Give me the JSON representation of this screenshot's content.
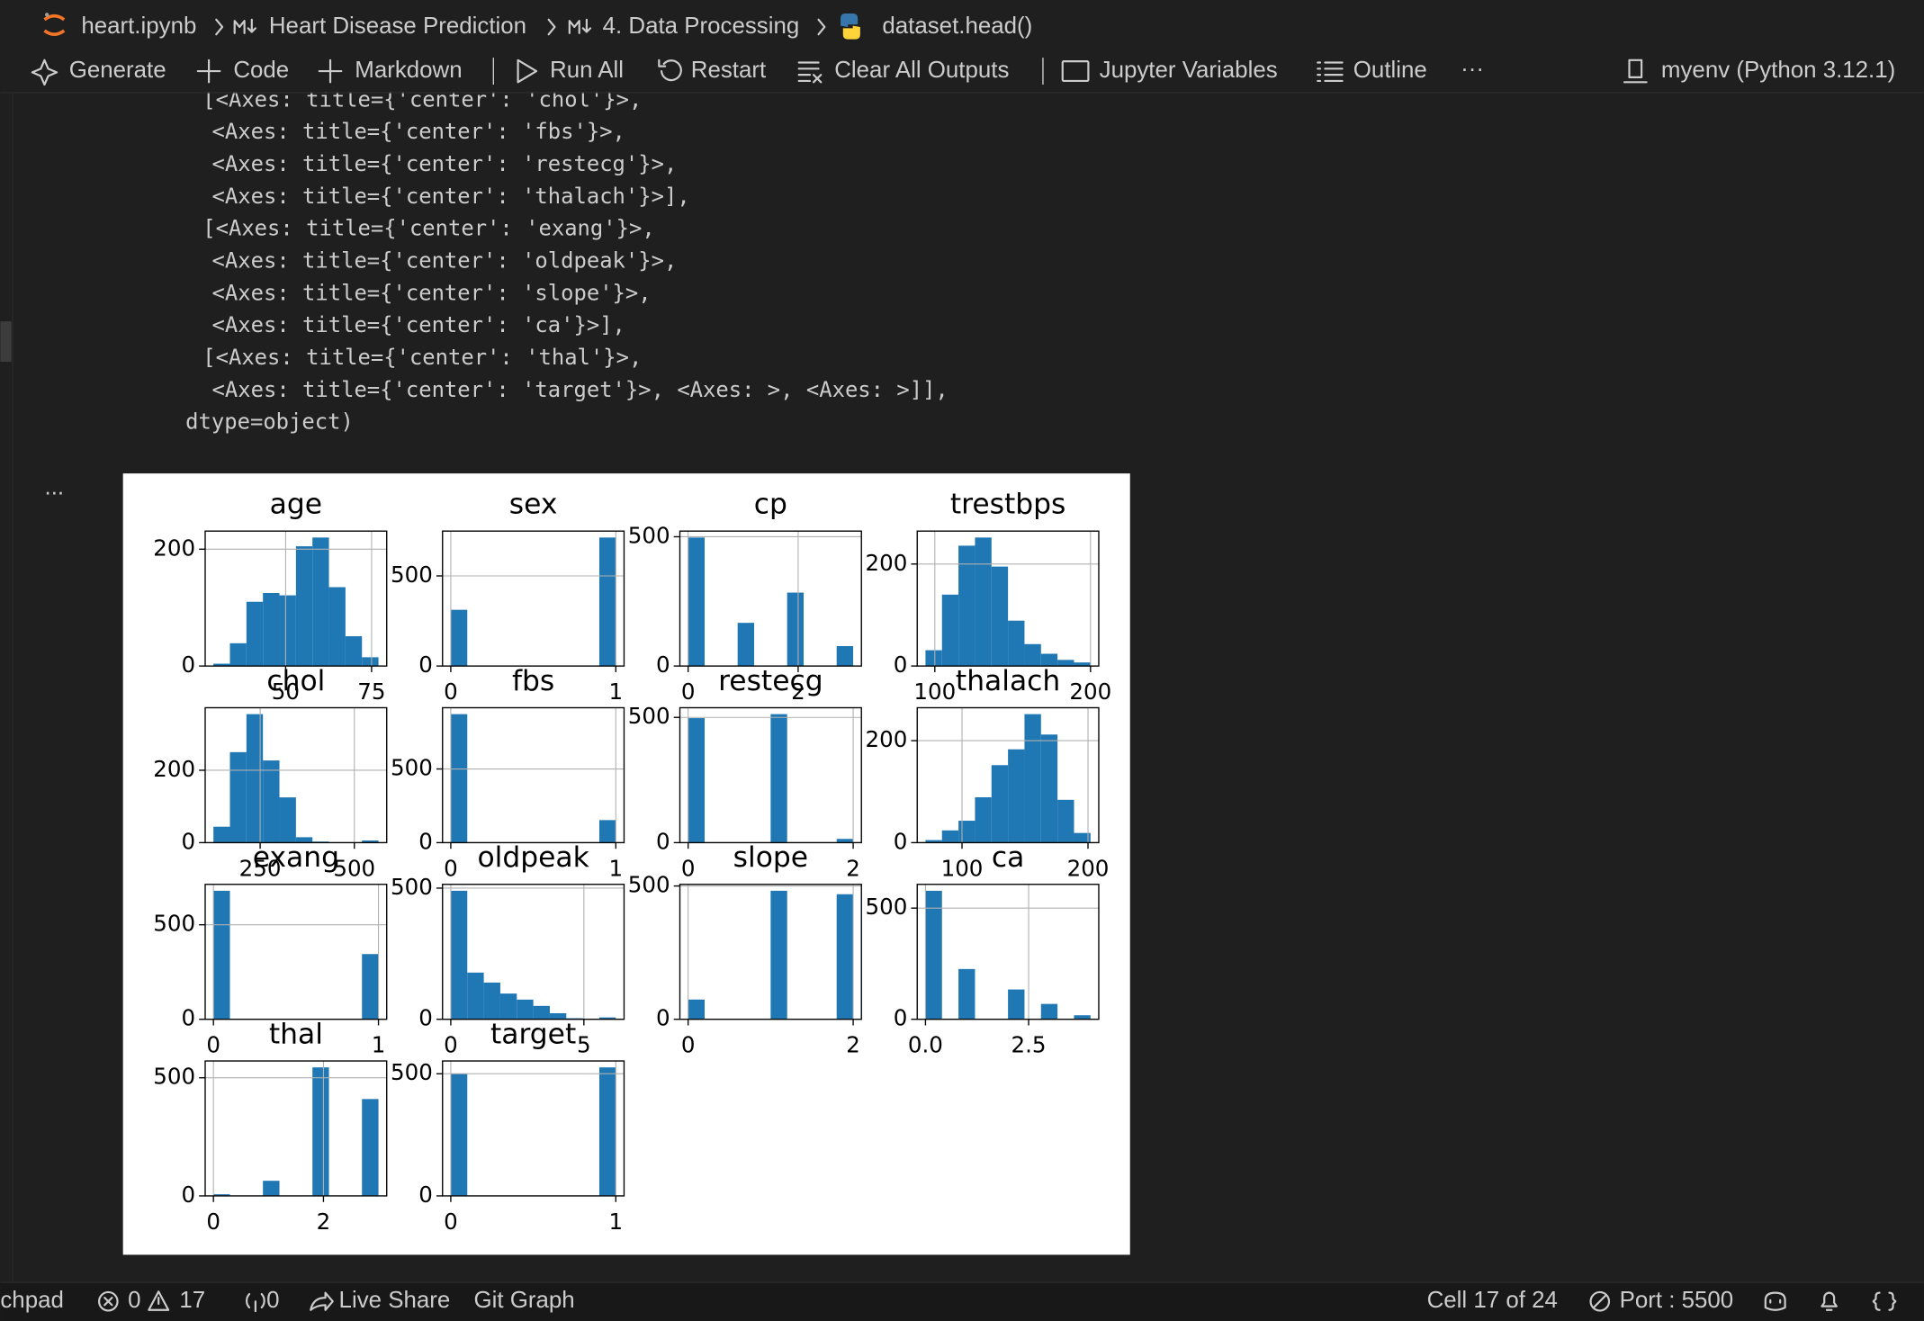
{
  "breadcrumb": [
    "heart.ipynb",
    "Heart Disease Prediction",
    "4. Data Processing",
    "dataset.head()"
  ],
  "toolbar": {
    "items": [
      "Generate",
      "Code",
      "Markdown",
      "Run All",
      "Restart",
      "Clear All Outputs",
      "Jupyter Variables",
      "Outline"
    ],
    "more": "···",
    "kernel": "myenv (Python 3.12.1)"
  },
  "output": {
    "lines": [
      "[<Axes: title={'center': 'chol'}>,",
      " <Axes: title={'center': 'fbs'}>,",
      " <Axes: title={'center': 'restecg'}>,",
      " <Axes: title={'center': 'thalach'}>],",
      "[<Axes: title={'center': 'exang'}>,",
      " <Axes: title={'center': 'oldpeak'}>,",
      " <Axes: title={'center': 'slope'}>,",
      " <Axes: title={'center': 'ca'}>],",
      "[<Axes: title={'center': 'thal'}>,",
      " <Axes: title={'center': 'target'}>, <Axes: >, <Axes: >]],",
      "dtype=object)"
    ],
    "more": "..."
  },
  "chart_data": [
    {
      "type": "histogram",
      "title": "age",
      "color": "#1f77b4",
      "grid": true,
      "bins": [
        29,
        33.8,
        38.6,
        43.4,
        48.2,
        53,
        57.8,
        62.6,
        67.4,
        72.2,
        77
      ],
      "values": [
        4,
        39,
        110,
        125,
        121,
        205,
        220,
        135,
        51,
        15
      ],
      "xlim": [
        26.6,
        79.4
      ],
      "xticks": [
        50,
        75
      ],
      "ylim": [
        0,
        231
      ],
      "yticks": [
        0,
        200
      ]
    },
    {
      "type": "histogram",
      "title": "sex",
      "color": "#1f77b4",
      "grid": true,
      "bins": [
        0,
        0.1,
        0.2,
        0.3,
        0.4,
        0.5,
        0.6,
        0.7,
        0.8,
        0.9,
        1
      ],
      "values": [
        312,
        0,
        0,
        0,
        0,
        0,
        0,
        0,
        0,
        713
      ],
      "xlim": [
        -0.05,
        1.05
      ],
      "xticks": [
        0,
        1
      ],
      "ylim": [
        0,
        748.65
      ],
      "yticks": [
        0,
        500
      ]
    },
    {
      "type": "histogram",
      "title": "cp",
      "color": "#1f77b4",
      "grid": true,
      "bins": [
        0,
        0.3,
        0.6,
        0.9,
        1.2,
        1.5,
        1.8,
        2.1,
        2.4,
        2.7,
        3
      ],
      "values": [
        497,
        0,
        0,
        167,
        0,
        0,
        284,
        0,
        0,
        77
      ],
      "xlim": [
        -0.15,
        3.15
      ],
      "xticks": [
        0,
        2
      ],
      "ylim": [
        0,
        521.85
      ],
      "yticks": [
        0,
        500
      ]
    },
    {
      "type": "histogram",
      "title": "trestbps",
      "color": "#1f77b4",
      "grid": true,
      "bins": [
        94,
        104.6,
        115.2,
        125.8,
        136.4,
        147,
        157.6,
        168.2,
        178.8,
        189.4,
        200
      ],
      "values": [
        31,
        140,
        236,
        252,
        195,
        89,
        43,
        24,
        12,
        7
      ],
      "xlim": [
        88.7,
        205.3
      ],
      "xticks": [
        100,
        200
      ],
      "ylim": [
        0,
        264.6
      ],
      "yticks": [
        0,
        200
      ]
    },
    {
      "type": "histogram",
      "title": "chol",
      "color": "#1f77b4",
      "grid": true,
      "bins": [
        126,
        169.8,
        213.6,
        257.4,
        301.2,
        345,
        388.8,
        432.6,
        476.4,
        520.2,
        564
      ],
      "values": [
        44,
        250,
        355,
        227,
        125,
        15,
        3,
        0,
        0,
        6
      ],
      "xlim": [
        104.1,
        585.9
      ],
      "xticks": [
        250,
        500
      ],
      "ylim": [
        0,
        372.75
      ],
      "yticks": [
        0,
        200
      ]
    },
    {
      "type": "histogram",
      "title": "fbs",
      "color": "#1f77b4",
      "grid": true,
      "bins": [
        0,
        0.1,
        0.2,
        0.3,
        0.4,
        0.5,
        0.6,
        0.7,
        0.8,
        0.9,
        1
      ],
      "values": [
        872,
        0,
        0,
        0,
        0,
        0,
        0,
        0,
        0,
        153
      ],
      "xlim": [
        -0.05,
        1.05
      ],
      "xticks": [
        0,
        1
      ],
      "ylim": [
        0,
        915.6
      ],
      "yticks": [
        0,
        500
      ]
    },
    {
      "type": "histogram",
      "title": "restecg",
      "color": "#1f77b4",
      "grid": true,
      "bins": [
        0,
        0.2,
        0.4,
        0.6,
        0.8,
        1,
        1.2,
        1.4,
        1.6,
        1.8,
        2
      ],
      "values": [
        497,
        0,
        0,
        0,
        0,
        513,
        0,
        0,
        0,
        15
      ],
      "xlim": [
        -0.1,
        2.1
      ],
      "xticks": [
        0,
        2
      ],
      "ylim": [
        0,
        538.65
      ],
      "yticks": [
        0,
        500
      ]
    },
    {
      "type": "histogram",
      "title": "thalach",
      "color": "#1f77b4",
      "grid": true,
      "bins": [
        71,
        84.1,
        97.2,
        110.3,
        123.4,
        136.5,
        149.6,
        162.7,
        175.8,
        188.9,
        202
      ],
      "values": [
        5,
        24,
        43,
        89,
        152,
        183,
        252,
        212,
        84,
        19
      ],
      "xlim": [
        64.45,
        208.55
      ],
      "xticks": [
        100,
        200
      ],
      "ylim": [
        0,
        264.6
      ],
      "yticks": [
        0,
        200
      ]
    },
    {
      "type": "histogram",
      "title": "exang",
      "color": "#1f77b4",
      "grid": true,
      "bins": [
        0,
        0.1,
        0.2,
        0.3,
        0.4,
        0.5,
        0.6,
        0.7,
        0.8,
        0.9,
        1
      ],
      "values": [
        680,
        0,
        0,
        0,
        0,
        0,
        0,
        0,
        0,
        345
      ],
      "xlim": [
        -0.05,
        1.05
      ],
      "xticks": [
        0,
        1
      ],
      "ylim": [
        0,
        714
      ],
      "yticks": [
        0,
        500
      ]
    },
    {
      "type": "histogram",
      "title": "oldpeak",
      "color": "#1f77b4",
      "grid": true,
      "bins": [
        0,
        0.62,
        1.24,
        1.86,
        2.48,
        3.1,
        3.72,
        4.34,
        4.96,
        5.58,
        6.2
      ],
      "values": [
        490,
        178,
        140,
        98,
        75,
        51,
        23,
        4,
        0,
        7
      ],
      "xlim": [
        -0.31,
        6.51
      ],
      "xticks": [
        0,
        5
      ],
      "ylim": [
        0,
        514.5
      ],
      "yticks": [
        0,
        500
      ]
    },
    {
      "type": "histogram",
      "title": "slope",
      "color": "#1f77b4",
      "grid": true,
      "bins": [
        0,
        0.2,
        0.4,
        0.6,
        0.8,
        1,
        1.2,
        1.4,
        1.6,
        1.8,
        2
      ],
      "values": [
        74,
        0,
        0,
        0,
        0,
        482,
        0,
        0,
        0,
        469
      ],
      "xlim": [
        -0.1,
        2.1
      ],
      "xticks": [
        0,
        2
      ],
      "ylim": [
        0,
        506.1
      ],
      "yticks": [
        0,
        500
      ]
    },
    {
      "type": "histogram",
      "title": "ca",
      "color": "#1f77b4",
      "grid": true,
      "bins": [
        0,
        0.4,
        0.8,
        1.2,
        1.6,
        2,
        2.4,
        2.8,
        3.2,
        3.6,
        4
      ],
      "values": [
        578,
        0,
        226,
        0,
        0,
        134,
        0,
        69,
        0,
        18
      ],
      "xlim": [
        -0.2,
        4.2
      ],
      "xticks": [
        {
          "value": 0,
          "label": "0.0"
        },
        2.5
      ],
      "ylim": [
        0,
        606.9
      ],
      "yticks": [
        0,
        500
      ]
    },
    {
      "type": "histogram",
      "title": "thal",
      "color": "#1f77b4",
      "grid": true,
      "bins": [
        0,
        0.3,
        0.6,
        0.9,
        1.2,
        1.5,
        1.8,
        2.1,
        2.4,
        2.7,
        3
      ],
      "values": [
        7,
        0,
        0,
        64,
        0,
        0,
        544,
        0,
        0,
        410
      ],
      "xlim": [
        -0.15,
        3.15
      ],
      "xticks": [
        0,
        2
      ],
      "ylim": [
        0,
        571.2
      ],
      "yticks": [
        0,
        500
      ]
    },
    {
      "type": "histogram",
      "title": "target",
      "color": "#1f77b4",
      "grid": true,
      "bins": [
        0,
        0.1,
        0.2,
        0.3,
        0.4,
        0.5,
        0.6,
        0.7,
        0.8,
        0.9,
        1
      ],
      "values": [
        499,
        0,
        0,
        0,
        0,
        0,
        0,
        0,
        0,
        526
      ],
      "xlim": [
        -0.05,
        1.05
      ],
      "xticks": [
        0,
        1
      ],
      "ylim": [
        0,
        552.3
      ],
      "yticks": [
        0,
        500
      ]
    }
  ],
  "status_bar": {
    "launchpad": "chpad",
    "errors": 0,
    "warnings": 17,
    "ports": 0,
    "live_share": "Live Share",
    "git_graph": "Git Graph",
    "cell": "Cell 17 of 24",
    "port": "Port : 5500"
  }
}
